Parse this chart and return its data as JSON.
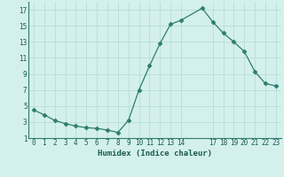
{
  "x": [
    0,
    1,
    2,
    3,
    4,
    5,
    6,
    7,
    8,
    9,
    10,
    11,
    12,
    13,
    14,
    16,
    17,
    18,
    19,
    20,
    21,
    22,
    23
  ],
  "y": [
    4.5,
    3.9,
    3.2,
    2.8,
    2.5,
    2.3,
    2.2,
    2.0,
    1.7,
    3.2,
    7.0,
    10.0,
    12.8,
    15.2,
    15.7,
    17.2,
    15.5,
    14.1,
    13.0,
    11.8,
    9.3,
    7.8,
    7.5
  ],
  "line_color": "#2d7d6e",
  "marker": "D",
  "marker_size": 2.5,
  "bg_color": "#d4f0ec",
  "grid_color": "#b8ddd8",
  "xlabel": "Humidex (Indice chaleur)",
  "xlabel_color": "#1a5c50",
  "tick_color": "#1a5c50",
  "xlim": [
    -0.5,
    23.5
  ],
  "ylim": [
    1,
    18
  ],
  "yticks": [
    1,
    3,
    5,
    7,
    9,
    11,
    13,
    15,
    17
  ],
  "xticks": [
    0,
    1,
    2,
    3,
    4,
    5,
    6,
    7,
    8,
    9,
    10,
    11,
    12,
    13,
    14,
    17,
    18,
    19,
    20,
    21,
    22,
    23
  ],
  "xtick_labels": [
    "0",
    "1",
    "2",
    "3",
    "4",
    "5",
    "6",
    "7",
    "8",
    "9",
    "10",
    "11",
    "12",
    "13",
    "14",
    "17",
    "18",
    "19",
    "20",
    "21",
    "22",
    "23"
  ]
}
